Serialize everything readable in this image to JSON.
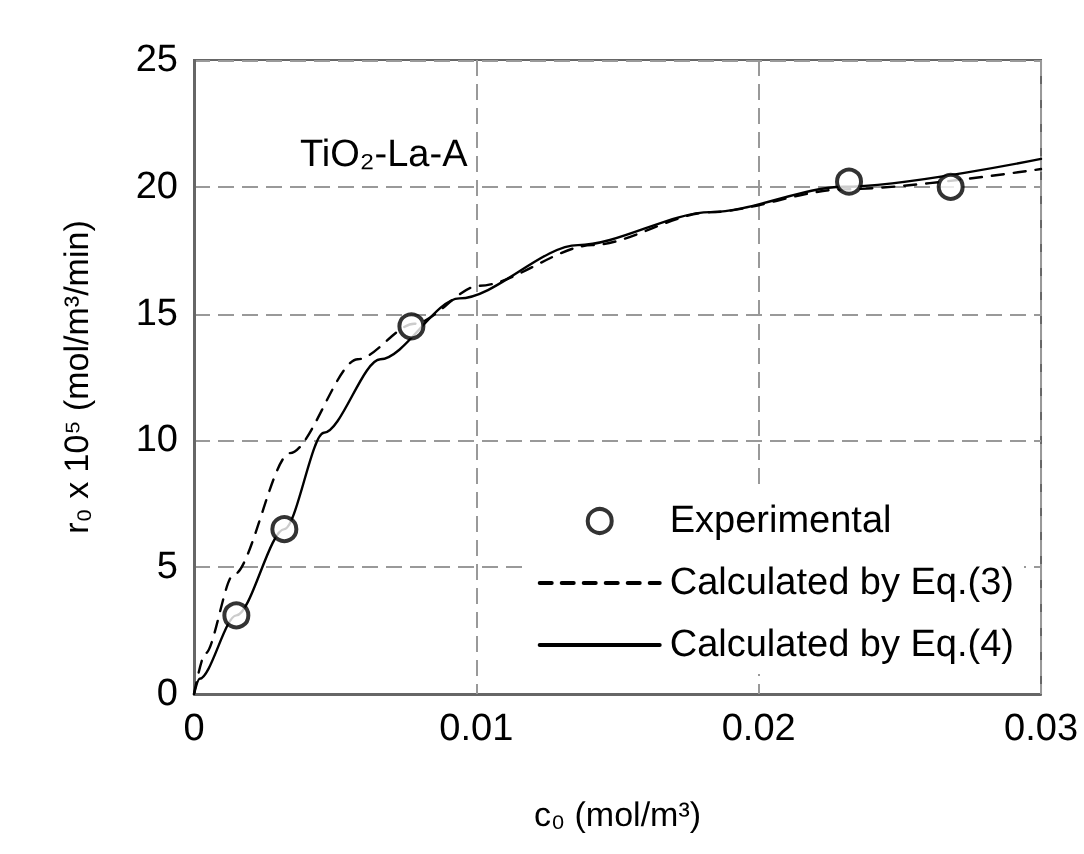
{
  "chart_data": {
    "type": "scatter",
    "xlabel": "c₀ (mol/m³)",
    "ylabel": "r₀ x 10⁵ (mol/m³/min)",
    "annotations": [
      "TiO₂-La-A"
    ],
    "xlim": [
      0,
      0.03
    ],
    "xticks": [
      0,
      0.01,
      0.02,
      0.03
    ],
    "ylim": [
      0,
      25
    ],
    "yticks": [
      0,
      5,
      10,
      15,
      20,
      25
    ],
    "grid": true,
    "legend": "bottom right",
    "marker": "circle",
    "series": [
      {
        "name": "Experimental",
        "color": "#000000",
        "x": [
          0.0015,
          0.0032,
          0.0077,
          0.0232,
          0.0268
        ],
        "values": [
          3.1,
          6.5,
          14.5,
          20.2,
          20.0
        ]
      },
      {
        "name": "Calculated by Eq.(3)",
        "type": "line",
        "color": "#000000",
        "marker": "none",
        "line_style": "dashed",
        "x": [
          0,
          0.0004,
          0.0014,
          0.0034,
          0.0058,
          0.0078,
          0.0101,
          0.0141,
          0.0183,
          0.023,
          0.03
        ],
        "values": [
          0,
          1.6,
          4.7,
          9.5,
          13.2,
          14.6,
          16.1,
          17.7,
          19.0,
          19.9,
          20.7
        ]
      },
      {
        "name": "Calculated by Eq.(4)",
        "type": "line",
        "color": "#000000",
        "marker": "none",
        "line_style": "solid",
        "x": [
          0,
          0.0002,
          0.0015,
          0.0032,
          0.0046,
          0.0066,
          0.0094,
          0.0136,
          0.0183,
          0.023,
          0.03
        ],
        "values": [
          0,
          0.6,
          3.1,
          6.5,
          10.3,
          13.2,
          15.6,
          17.7,
          19.0,
          20.0,
          21.1
        ]
      }
    ]
  }
}
